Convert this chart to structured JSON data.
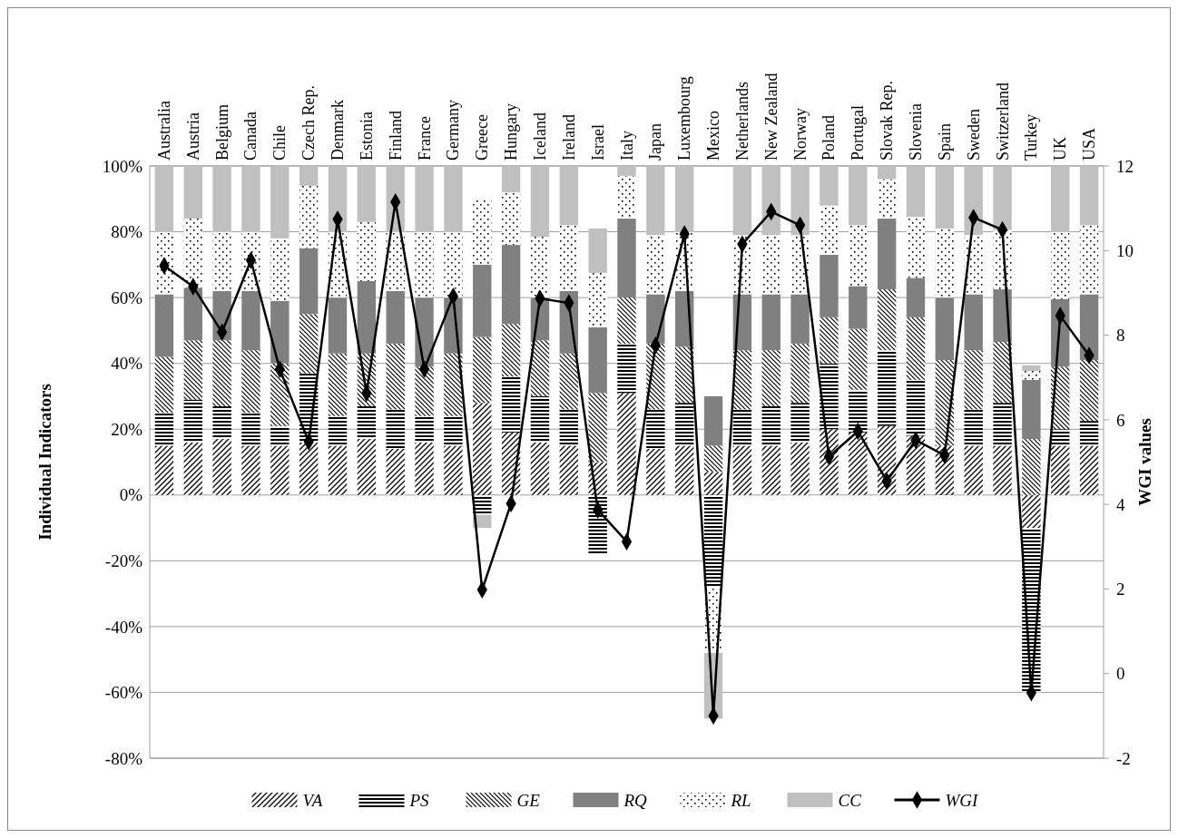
{
  "chart_data": {
    "type": "bar",
    "stacked": true,
    "xlabel": null,
    "ylabel": "Individual Indicators",
    "y2label": "WGI values",
    "categories": [
      "Australia",
      "Austria",
      "Belgium",
      "Canada",
      "Chile",
      "Czech Rep.",
      "Denmark",
      "Estonia",
      "Finland",
      "France",
      "Germany",
      "Greece",
      "Hungary",
      "Iceland",
      "Ireland",
      "Israel",
      "Italy",
      "Japan",
      "Luxembourg",
      "Mexico",
      "Netherlands",
      "New Zealand",
      "Norway",
      "Poland",
      "Portugal",
      "Slovak Rep.",
      "Slovenia",
      "Spain",
      "Sweden",
      "Switzerland",
      "Turkey",
      "UK",
      "USA"
    ],
    "ylim": [
      -80,
      100
    ],
    "yticks": [
      {
        "value": -80,
        "label": "-80%"
      },
      {
        "value": -60,
        "label": "-60%"
      },
      {
        "value": -40,
        "label": "-40%"
      },
      {
        "value": -20,
        "label": "-20%"
      },
      {
        "value": 0,
        "label": "0%"
      },
      {
        "value": 20,
        "label": "20%"
      },
      {
        "value": 40,
        "label": "40%"
      },
      {
        "value": 60,
        "label": "60%"
      },
      {
        "value": 80,
        "label": "80%"
      },
      {
        "value": 100,
        "label": "100%"
      }
    ],
    "y2lim": [
      -2,
      12
    ],
    "y2ticks": [
      -2,
      0,
      2,
      4,
      6,
      8,
      10,
      12
    ],
    "grid": "y",
    "legend": "bottom",
    "series": [
      {
        "name": "VA",
        "color": "#000000",
        "values": [
          15,
          16,
          17,
          15,
          15,
          16,
          15,
          17,
          14,
          16,
          15,
          28,
          19,
          16,
          15,
          10,
          31,
          14,
          15,
          7,
          15,
          15,
          16,
          20,
          19,
          21,
          18,
          15,
          15,
          15,
          -10,
          15,
          15
        ]
      },
      {
        "name": "PS",
        "color": "#000000",
        "values": [
          10,
          13,
          10,
          10,
          6,
          21,
          9,
          10,
          12,
          8,
          9,
          -6,
          17,
          14,
          11,
          -18,
          15,
          12,
          13,
          -28,
          11,
          12,
          12,
          20,
          13,
          23,
          17,
          -0.5,
          11,
          13,
          -50,
          5,
          7.5
        ]
      },
      {
        "name": "GE",
        "color": "#000000",
        "values": [
          17,
          18,
          20,
          19,
          19,
          18,
          19,
          16,
          20,
          15,
          19,
          20,
          16,
          17,
          17,
          21,
          14,
          20,
          17,
          8,
          18,
          17,
          18,
          14,
          18.5,
          18.5,
          19,
          26,
          18,
          18.5,
          17,
          19,
          18.5
        ]
      },
      {
        "name": "RQ",
        "color": "#808080",
        "values": [
          19,
          16,
          15,
          18,
          19,
          20,
          17,
          22,
          16,
          21,
          17,
          22,
          24,
          13,
          19,
          20,
          24,
          15,
          17,
          15,
          17,
          17,
          15,
          19,
          13,
          21.5,
          12,
          19,
          17,
          16,
          18,
          20.5,
          20
        ]
      },
      {
        "name": "RL",
        "color": "#000000",
        "values": [
          19,
          21,
          18,
          18,
          19,
          19,
          20,
          18,
          18,
          20,
          20,
          20,
          16,
          18.5,
          20,
          16.5,
          13,
          18,
          18,
          -20,
          18,
          18,
          18,
          15,
          18.5,
          12,
          18.5,
          21,
          18,
          18,
          2.7,
          20.5,
          21
        ]
      },
      {
        "name": "CC",
        "color": "#c0c0c0",
        "values": [
          20,
          16,
          20,
          20,
          22,
          6,
          20,
          17,
          20,
          20,
          20,
          -4,
          8,
          21.5,
          18,
          13.5,
          3,
          21,
          20,
          -20,
          21,
          21,
          21,
          12,
          18,
          4,
          15.5,
          19,
          21,
          19.5,
          1.7,
          20,
          18
        ]
      },
      {
        "name": "WGI",
        "type": "line",
        "axis": "y2",
        "color": "#000000",
        "marker": "diamond",
        "line_style": "solid",
        "values": [
          9.64,
          9.15,
          8.07,
          9.77,
          7.19,
          5.48,
          10.74,
          6.63,
          11.15,
          7.2,
          8.92,
          1.98,
          4.02,
          8.87,
          8.76,
          3.87,
          3.12,
          7.76,
          10.39,
          -1.0,
          10.15,
          10.92,
          10.6,
          5.13,
          5.73,
          4.55,
          5.52,
          5.16,
          10.78,
          10.49,
          -0.45,
          8.46,
          7.52
        ]
      }
    ]
  }
}
